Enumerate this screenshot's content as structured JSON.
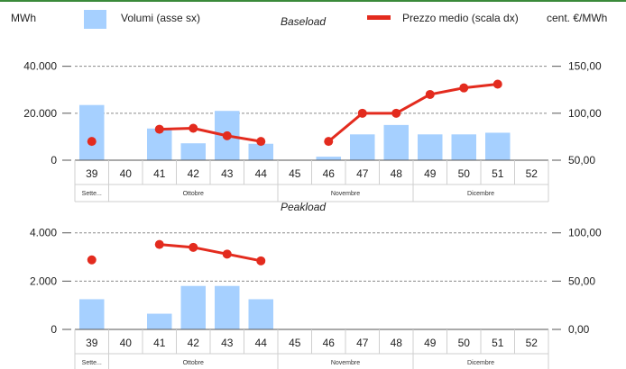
{
  "header": {
    "left_unit": "MWh",
    "legend_volumes": "Volumi (asse sx)",
    "legend_price": "Prezzo medio (scala dx)",
    "right_unit": "cent. €/MWh"
  },
  "colors": {
    "bar": "#a6d0ff",
    "price": "#e32b1e",
    "axis": "#555555",
    "frame": "#3a8a3a"
  },
  "chart_data": [
    {
      "type": "bar",
      "title": "Baseload",
      "categories": [
        "39",
        "40",
        "41",
        "42",
        "43",
        "44",
        "45",
        "46",
        "47",
        "48",
        "49",
        "50",
        "51",
        "52"
      ],
      "months": [
        {
          "label": "Sette...",
          "from": "39",
          "to": "39"
        },
        {
          "label": "Ottobre",
          "from": "40",
          "to": "44"
        },
        {
          "label": "Novembre",
          "from": "45",
          "to": "48"
        },
        {
          "label": "Dicembre",
          "from": "49",
          "to": "52"
        }
      ],
      "series": [
        {
          "name": "Volumi (asse sx)",
          "axis": "left",
          "values": [
            23500,
            null,
            13500,
            7200,
            21000,
            7000,
            null,
            1500,
            11000,
            15000,
            11000,
            11000,
            11700,
            null
          ]
        },
        {
          "name": "Prezzo medio (scala dx)",
          "axis": "right",
          "values": [
            70,
            null,
            83,
            84,
            76,
            70,
            null,
            70,
            100,
            100,
            120,
            127,
            131,
            null
          ]
        }
      ],
      "left_axis": {
        "ticks": [
          0,
          20000,
          40000
        ],
        "tick_labels": [
          "0",
          "20.000",
          "40.000"
        ],
        "range": [
          0,
          46000
        ]
      },
      "right_axis": {
        "ticks": [
          50,
          100,
          150
        ],
        "tick_labels": [
          "50,00",
          "100,00",
          "150,00"
        ],
        "range": [
          50,
          165
        ]
      }
    },
    {
      "type": "bar",
      "title": "Peakload",
      "categories": [
        "39",
        "40",
        "41",
        "42",
        "43",
        "44",
        "45",
        "46",
        "47",
        "48",
        "49",
        "50",
        "51",
        "52"
      ],
      "months": [
        {
          "label": "Sette...",
          "from": "39",
          "to": "39"
        },
        {
          "label": "Ottobre",
          "from": "40",
          "to": "44"
        },
        {
          "label": "Novembre",
          "from": "45",
          "to": "48"
        },
        {
          "label": "Dicembre",
          "from": "49",
          "to": "52"
        }
      ],
      "series": [
        {
          "name": "Volumi (asse sx)",
          "axis": "left",
          "values": [
            1250,
            null,
            650,
            1800,
            1800,
            1250,
            null,
            null,
            null,
            null,
            null,
            null,
            null,
            null
          ]
        },
        {
          "name": "Prezzo medio (scala dx)",
          "axis": "right",
          "values": [
            72,
            null,
            88,
            85,
            78,
            71,
            null,
            null,
            null,
            null,
            null,
            null,
            null,
            null
          ]
        }
      ],
      "left_axis": {
        "ticks": [
          0,
          2000,
          4000
        ],
        "tick_labels": [
          "0",
          "2.000",
          "4.000"
        ],
        "range": [
          0,
          4400
        ]
      },
      "right_axis": {
        "ticks": [
          0,
          50,
          100
        ],
        "tick_labels": [
          "0,00",
          "50,00",
          "100,00"
        ],
        "range": [
          0,
          110
        ]
      }
    }
  ]
}
